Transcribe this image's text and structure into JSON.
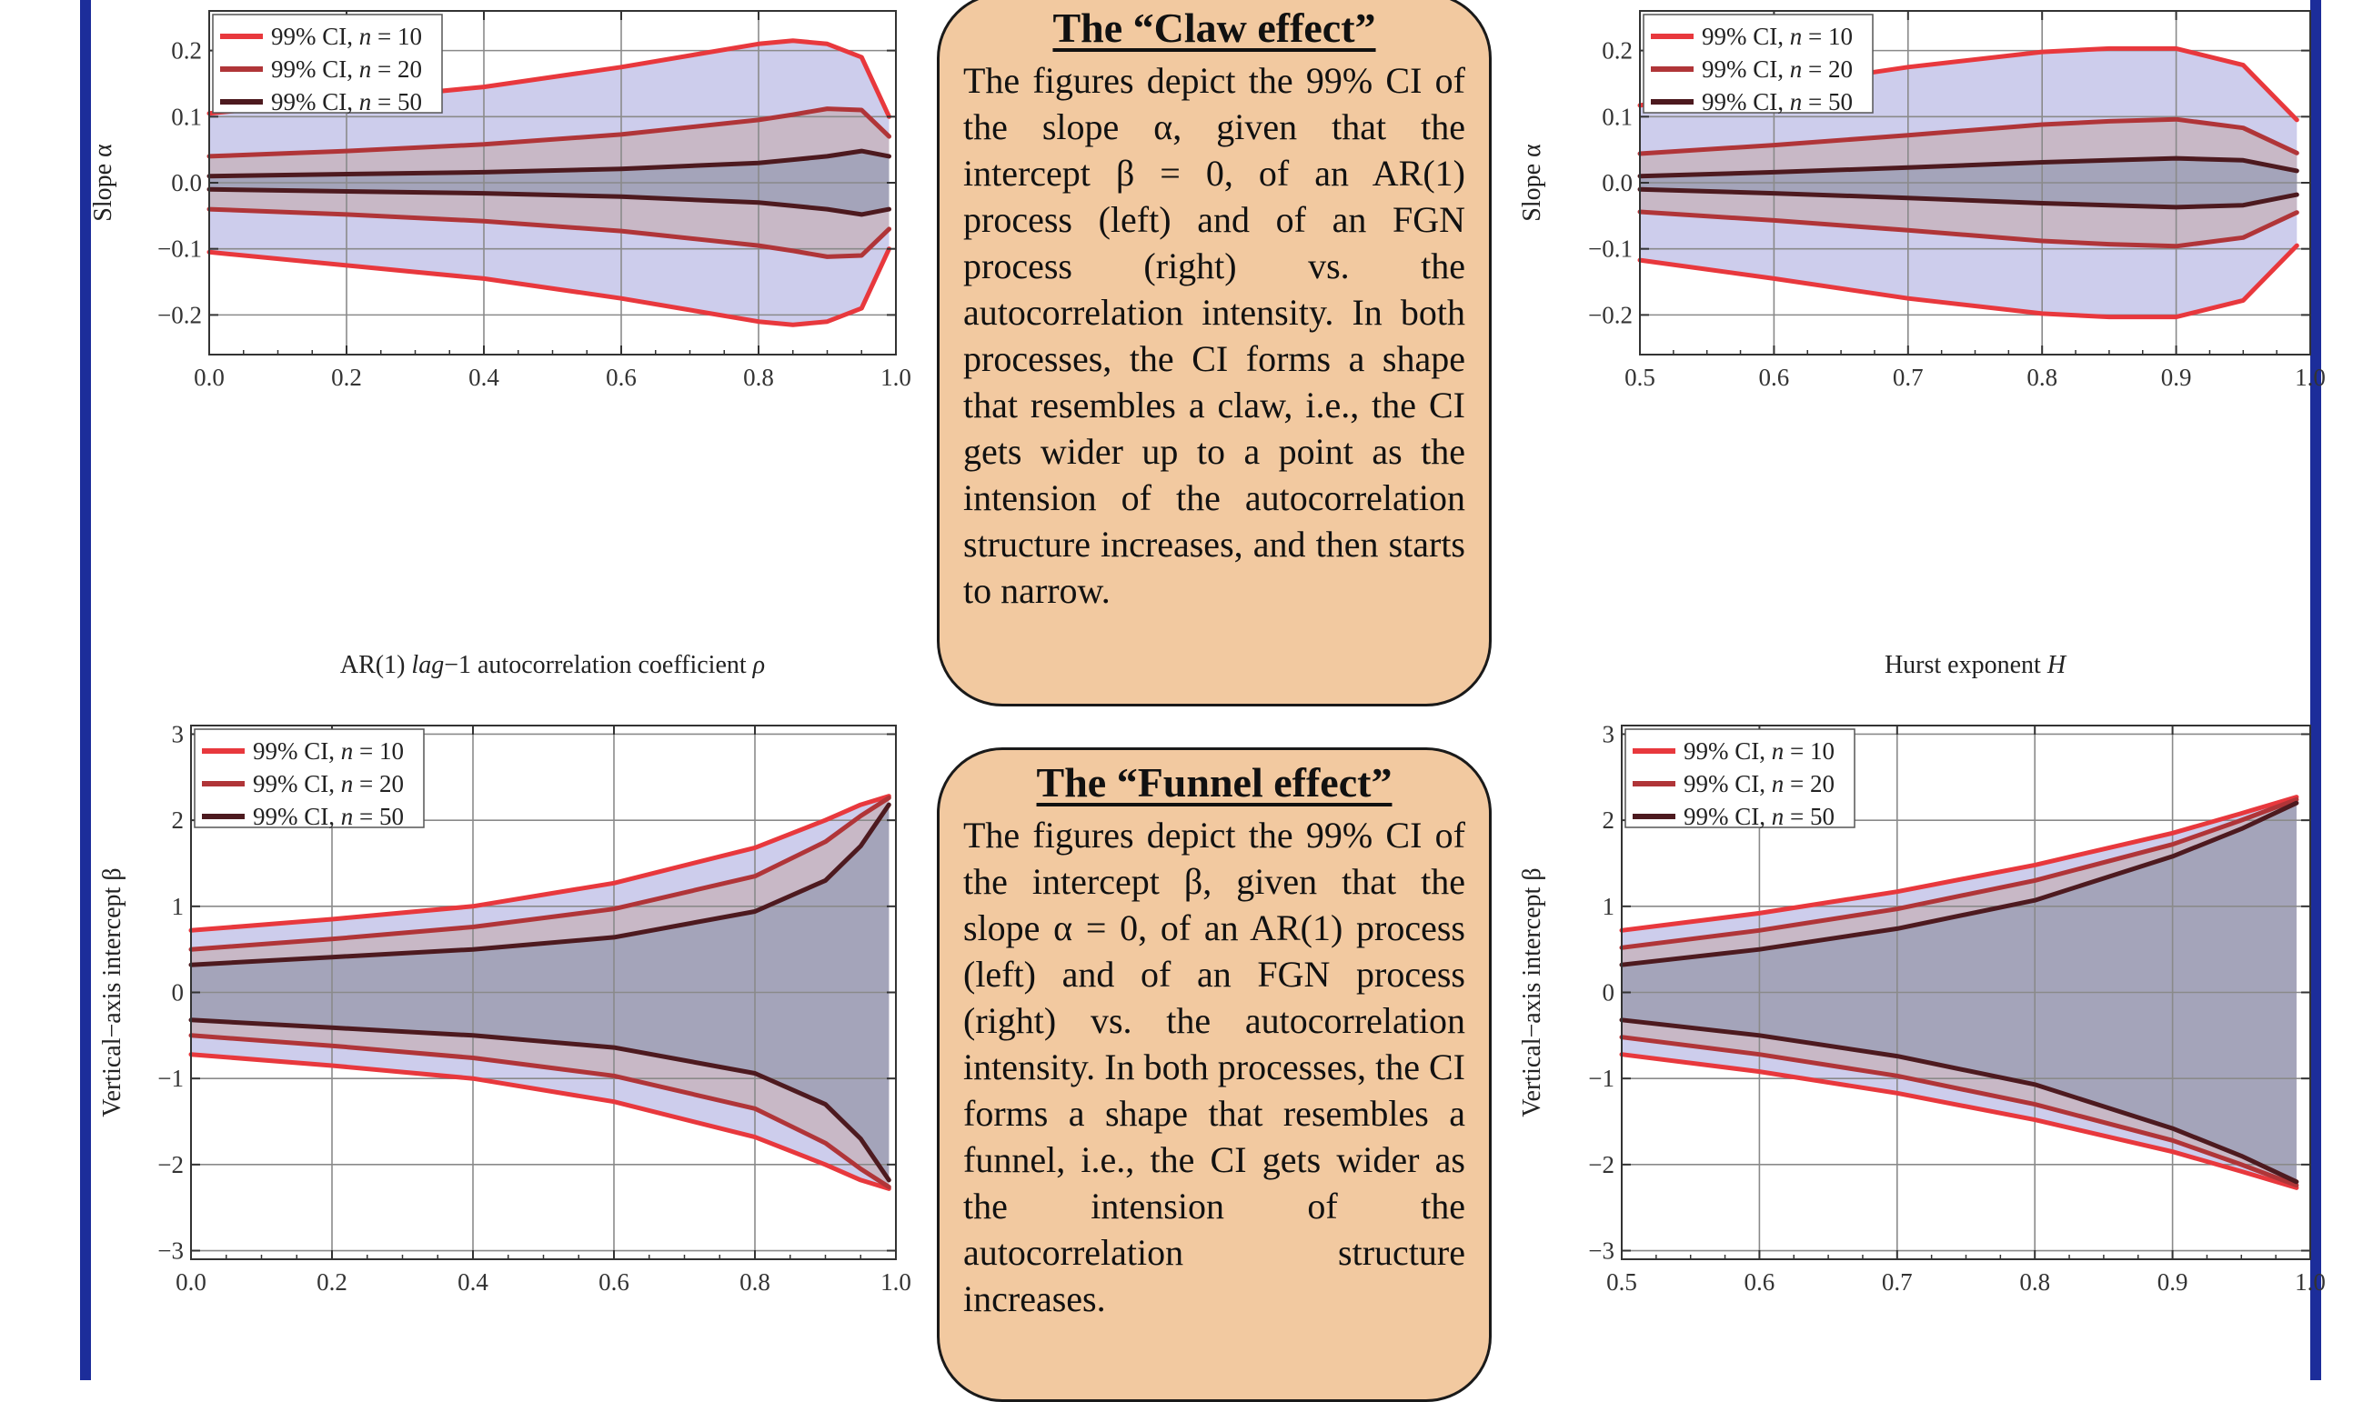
{
  "chart_data": [
    {
      "type": "area",
      "xlabel_parts": [
        "AR(1) ",
        "lag",
        "−1 autocorrelation coefficient ",
        "ρ"
      ],
      "ylabel": "Slope α",
      "xlim": [
        0,
        1
      ],
      "ylim": [
        -0.26,
        0.26
      ],
      "xticks": [
        "0.0",
        "0.2",
        "0.4",
        "0.6",
        "0.8",
        "1.0"
      ],
      "yticks": [
        "−0.2",
        "−0.1",
        "0.0",
        "0.1",
        "0.2"
      ],
      "legend": [
        "99% CI, n = 10",
        "99% CI, n = 20",
        "99% CI, n = 50"
      ],
      "legend_placement": "top-left",
      "grid": true,
      "x": [
        0,
        0.2,
        0.4,
        0.6,
        0.8,
        0.85,
        0.9,
        0.95,
        0.99
      ],
      "series": [
        {
          "name": "99% CI, n = 10",
          "upper": [
            0.105,
            0.125,
            0.145,
            0.175,
            0.21,
            0.215,
            0.21,
            0.19,
            0.1
          ]
        },
        {
          "name": "99% CI, n = 20",
          "upper": [
            0.04,
            0.048,
            0.058,
            0.073,
            0.095,
            0.103,
            0.112,
            0.11,
            0.07
          ]
        },
        {
          "name": "99% CI, n = 50",
          "upper": [
            0.01,
            0.013,
            0.016,
            0.021,
            0.03,
            0.035,
            0.04,
            0.048,
            0.04
          ]
        }
      ]
    },
    {
      "type": "area",
      "xlabel_parts": [
        "Hurst exponent ",
        "H"
      ],
      "ylabel": "Slope α",
      "xlim": [
        0.5,
        1
      ],
      "ylim": [
        -0.26,
        0.26
      ],
      "xticks": [
        "0.5",
        "0.6",
        "0.7",
        "0.8",
        "0.9",
        "1.0"
      ],
      "yticks": [
        "−0.2",
        "−0.1",
        "0.0",
        "0.1",
        "0.2"
      ],
      "legend": [
        "99% CI, n = 10",
        "99% CI, n = 20",
        "99% CI, n = 50"
      ],
      "legend_placement": "top-left",
      "grid": true,
      "x": [
        0.5,
        0.6,
        0.7,
        0.8,
        0.85,
        0.9,
        0.95,
        0.99
      ],
      "series": [
        {
          "name": "99% CI, n = 10",
          "upper": [
            0.117,
            0.145,
            0.175,
            0.198,
            0.203,
            0.203,
            0.178,
            0.095
          ]
        },
        {
          "name": "99% CI, n = 20",
          "upper": [
            0.044,
            0.057,
            0.072,
            0.088,
            0.093,
            0.096,
            0.083,
            0.045
          ]
        },
        {
          "name": "99% CI, n = 50",
          "upper": [
            0.01,
            0.016,
            0.023,
            0.031,
            0.034,
            0.037,
            0.034,
            0.018
          ]
        }
      ]
    },
    {
      "type": "area",
      "xlabel_parts": [],
      "ylabel": "Vertical−axis intercept β",
      "xlim": [
        0,
        1
      ],
      "ylim": [
        -3.1,
        3.1
      ],
      "xticks": [
        "0.0",
        "0.2",
        "0.4",
        "0.6",
        "0.8",
        "1.0"
      ],
      "yticks": [
        "−3",
        "−2",
        "−1",
        "0",
        "1",
        "2",
        "3"
      ],
      "legend": [
        "99% CI, n = 10",
        "99% CI, n = 20",
        "99% CI, n = 50"
      ],
      "legend_placement": "top-left",
      "grid": true,
      "x": [
        0,
        0.2,
        0.4,
        0.6,
        0.8,
        0.9,
        0.95,
        0.99
      ],
      "series": [
        {
          "name": "99% CI, n = 10",
          "upper": [
            0.72,
            0.85,
            1.0,
            1.27,
            1.68,
            2.0,
            2.18,
            2.28
          ]
        },
        {
          "name": "99% CI, n = 20",
          "upper": [
            0.5,
            0.62,
            0.76,
            0.97,
            1.35,
            1.75,
            2.05,
            2.26
          ]
        },
        {
          "name": "99% CI, n = 50",
          "upper": [
            0.32,
            0.41,
            0.5,
            0.64,
            0.94,
            1.3,
            1.7,
            2.18
          ]
        }
      ]
    },
    {
      "type": "area",
      "xlabel_parts": [],
      "ylabel": "Vertical−axis intercept β",
      "xlim": [
        0.5,
        1
      ],
      "ylim": [
        -3.1,
        3.1
      ],
      "xticks": [
        "0.5",
        "0.6",
        "0.7",
        "0.8",
        "0.9",
        "1.0"
      ],
      "yticks": [
        "−3",
        "−2",
        "−1",
        "0",
        "1",
        "2",
        "3"
      ],
      "legend": [
        "99% CI, n = 10",
        "99% CI, n = 20",
        "99% CI, n = 50"
      ],
      "legend_placement": "top-left",
      "grid": true,
      "x": [
        0.5,
        0.6,
        0.7,
        0.8,
        0.9,
        0.95,
        0.99
      ],
      "series": [
        {
          "name": "99% CI, n = 10",
          "upper": [
            0.72,
            0.92,
            1.17,
            1.48,
            1.85,
            2.08,
            2.27
          ]
        },
        {
          "name": "99% CI, n = 20",
          "upper": [
            0.52,
            0.72,
            0.97,
            1.3,
            1.72,
            2.0,
            2.24
          ]
        },
        {
          "name": "99% CI, n = 50",
          "upper": [
            0.32,
            0.5,
            0.74,
            1.07,
            1.58,
            1.9,
            2.2
          ]
        }
      ]
    }
  ],
  "boxes": {
    "claw": {
      "title": "The “Claw effect”",
      "text": "The figures depict the 99% CI of the slope α, given that the intercept β = 0, of an AR(1) process (left) and of an FGN process (right) vs. the autocorrelation intensity. In both processes, the CI forms a shape that resembles a claw, i.e., the CI gets wider up to a point as the intension of the autocorrelation structure increases, and then starts to narrow."
    },
    "funnel": {
      "title": "The “Funnel effect”",
      "text": "The figures depict the 99% CI of the intercept β, given that the slope α = 0, of an AR(1) process (left) and of an FGN process (right) vs. the autocorrelation intensity. In both processes, the CI forms a shape that resembles a funnel, i.e., the CI gets wider as the intension of the autocorrelation structure increases."
    }
  },
  "colors": {
    "frame": "#1c2d9a",
    "box_fill": "#f2c9a0",
    "band_n10": "#cdcdec",
    "band_n20": "#c8b8c6",
    "band_n50": "#a4a4ba",
    "line_n10": "#e8383d",
    "line_n20": "#b03538",
    "line_n50": "#4d1a1f"
  }
}
